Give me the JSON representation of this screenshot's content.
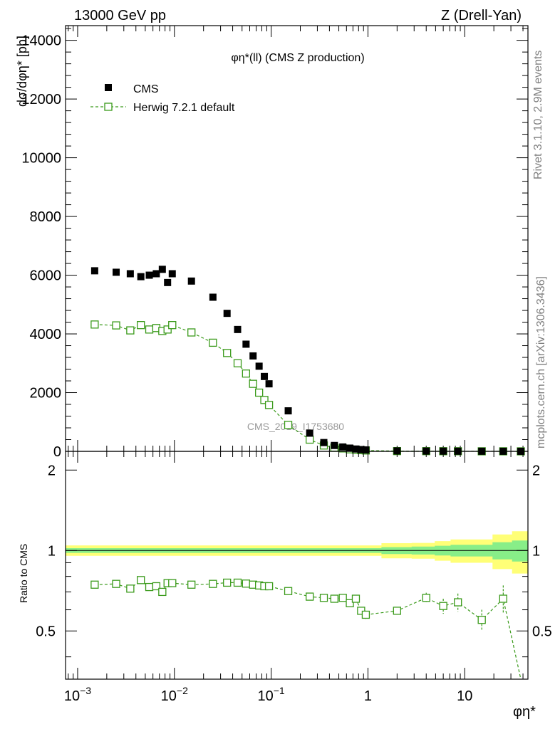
{
  "header": {
    "left": "13000 GeV pp",
    "right": "Z (Drell-Yan)"
  },
  "side_labels": {
    "rivet": "Rivet 3.1.10,  2.9M events",
    "mcplots": "mcplots.cern.ch [arXiv:1306.3436]"
  },
  "watermark": "CMS_2019_I1753680",
  "chart_data": [
    {
      "type": "scatter",
      "title": "φη*(ll) (CMS Z production)",
      "ylabel": "dσ/dφη* [pb]",
      "xscale": "log",
      "xlim": [
        0.00075,
        45
      ],
      "ylim": [
        0,
        14500
      ],
      "yticks": [
        0,
        2000,
        4000,
        6000,
        8000,
        10000,
        12000,
        14000
      ],
      "legend_position": "top-left",
      "series": [
        {
          "name": "CMS",
          "color": "#000000",
          "marker": "filled-square",
          "x": [
            0.0015,
            0.0025,
            0.0035,
            0.0045,
            0.0055,
            0.0065,
            0.0075,
            0.0085,
            0.0095,
            0.015,
            0.025,
            0.035,
            0.045,
            0.055,
            0.065,
            0.075,
            0.085,
            0.095,
            0.15,
            0.25,
            0.35,
            0.45,
            0.55,
            0.65,
            0.75,
            0.85,
            0.95,
            2.0,
            4.0,
            6.0,
            8.5,
            15,
            25,
            38
          ],
          "y": [
            6150,
            6100,
            6050,
            5950,
            6000,
            6050,
            6200,
            5750,
            6050,
            5800,
            5250,
            4700,
            4150,
            3650,
            3250,
            2900,
            2550,
            2300,
            1380,
            620,
            300,
            200,
            150,
            110,
            80,
            60,
            50,
            15,
            10,
            8,
            6,
            4,
            3,
            2
          ]
        },
        {
          "name": "Herwig 7.2.1 default",
          "color": "#3a9a1a",
          "marker": "open-square",
          "line": "dashed",
          "x": [
            0.0015,
            0.0025,
            0.0035,
            0.0045,
            0.0055,
            0.0065,
            0.0075,
            0.0085,
            0.0095,
            0.015,
            0.025,
            0.035,
            0.045,
            0.055,
            0.065,
            0.075,
            0.085,
            0.095,
            0.15,
            0.25,
            0.35,
            0.45,
            0.55,
            0.65,
            0.75,
            0.85,
            0.95,
            2.0,
            4.0,
            6.0,
            8.5,
            15,
            25,
            38
          ],
          "y": [
            4320,
            4290,
            4120,
            4300,
            4150,
            4200,
            4100,
            4150,
            4300,
            4050,
            3700,
            3350,
            3000,
            2650,
            2300,
            2000,
            1750,
            1580,
            900,
            400,
            200,
            130,
            100,
            70,
            55,
            40,
            30,
            9,
            7,
            5,
            4,
            2,
            2,
            0.5
          ]
        }
      ]
    },
    {
      "type": "line",
      "ylabel": "Ratio to CMS",
      "xlabel": "φη*",
      "xscale": "log",
      "xlim": [
        0.00075,
        45
      ],
      "ylim": [
        0.33,
        2.35
      ],
      "yticks": [
        0.5,
        1,
        2
      ],
      "xticks": [
        "10^-3",
        "10^-2",
        "10^-1",
        "1",
        "10"
      ],
      "band": {
        "center": 1.0,
        "inner_color": "#88ee88",
        "outer_color": "#ffff77"
      },
      "series": [
        {
          "color": "#3a9a1a",
          "marker": "open-square",
          "line": "dashed",
          "x": [
            0.0015,
            0.0025,
            0.0035,
            0.0045,
            0.0055,
            0.0065,
            0.0075,
            0.0085,
            0.0095,
            0.015,
            0.025,
            0.035,
            0.045,
            0.055,
            0.065,
            0.075,
            0.085,
            0.095,
            0.15,
            0.25,
            0.35,
            0.45,
            0.55,
            0.65,
            0.75,
            0.85,
            0.95,
            2.0,
            4.0,
            6.0,
            8.5,
            15,
            25,
            38
          ],
          "y": [
            0.745,
            0.75,
            0.72,
            0.775,
            0.73,
            0.735,
            0.7,
            0.755,
            0.755,
            0.745,
            0.75,
            0.758,
            0.758,
            0.752,
            0.745,
            0.74,
            0.735,
            0.735,
            0.705,
            0.672,
            0.665,
            0.66,
            0.665,
            0.635,
            0.66,
            0.595,
            0.575,
            0.595,
            0.665,
            0.62,
            0.64,
            0.55,
            0.66,
            0.25
          ],
          "err": [
            0.005,
            0.005,
            0.005,
            0.005,
            0.005,
            0.005,
            0.005,
            0.005,
            0.005,
            0.005,
            0.005,
            0.005,
            0.005,
            0.005,
            0.005,
            0.005,
            0.005,
            0.005,
            0.006,
            0.008,
            0.01,
            0.012,
            0.012,
            0.015,
            0.015,
            0.018,
            0.02,
            0.02,
            0.03,
            0.04,
            0.05,
            0.05,
            0.08,
            0.1
          ]
        }
      ]
    }
  ]
}
